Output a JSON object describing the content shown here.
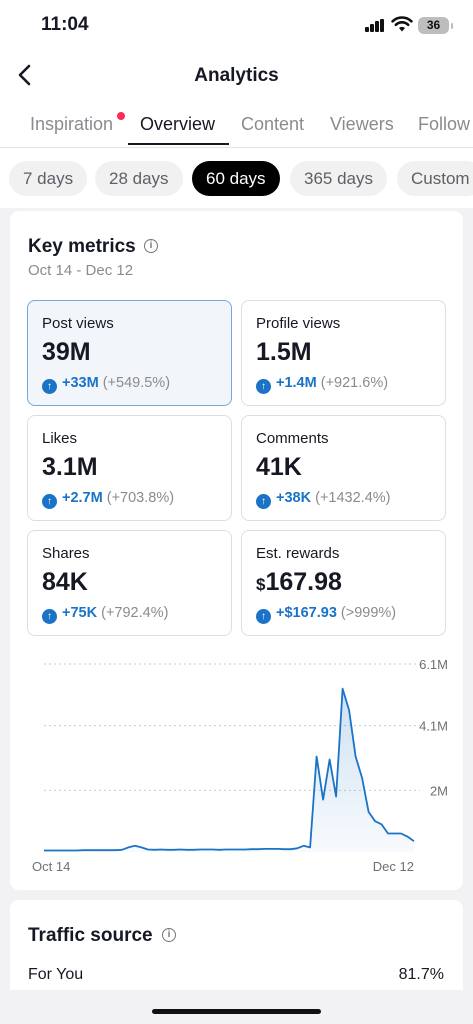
{
  "status_bar": {
    "time": "11:04",
    "battery": "36"
  },
  "nav": {
    "title": "Analytics"
  },
  "tabs": [
    {
      "label": "Inspiration",
      "has_dot": true
    },
    {
      "label": "Overview",
      "active": true
    },
    {
      "label": "Content"
    },
    {
      "label": "Viewers"
    },
    {
      "label": "Follow"
    }
  ],
  "ranges": [
    {
      "label": "7 days"
    },
    {
      "label": "28 days"
    },
    {
      "label": "60 days",
      "active": true
    },
    {
      "label": "365 days"
    },
    {
      "label": "Custom"
    }
  ],
  "key_metrics": {
    "title": "Key metrics",
    "date_range": "Oct 14 - Dec 12",
    "metrics": [
      {
        "label": "Post views",
        "value": "39M",
        "delta": "+33M",
        "pct": "(+549.5%)",
        "selected": true
      },
      {
        "label": "Profile views",
        "value": "1.5M",
        "delta": "+1.4M",
        "pct": "(+921.6%)"
      },
      {
        "label": "Likes",
        "value": "3.1M",
        "delta": "+2.7M",
        "pct": "(+703.8%)"
      },
      {
        "label": "Comments",
        "value": "41K",
        "delta": "+38K",
        "pct": "(+1432.4%)"
      },
      {
        "label": "Shares",
        "value": "84K",
        "delta": "+75K",
        "pct": "(+792.4%)"
      },
      {
        "label": "Est. rewards",
        "currency": "$",
        "value": "167.98",
        "delta": "+$167.93",
        "pct": "(>999%)"
      }
    ]
  },
  "chart_data": {
    "type": "area",
    "title": "",
    "xlabel": "",
    "ylabel": "",
    "x_tick_labels": [
      "Oct 14",
      "Dec 12"
    ],
    "y_tick_labels": [
      "6.1M",
      "4.1M",
      "2M"
    ],
    "y_ticks": [
      6.1,
      4.1,
      2.0
    ],
    "ylim": [
      0,
      6.1
    ],
    "y_unit": "M",
    "grid": true,
    "color": "#1a73c6",
    "series": [
      {
        "values": [
          0.05,
          0.05,
          0.05,
          0.05,
          0.05,
          0.05,
          0.06,
          0.06,
          0.06,
          0.06,
          0.06,
          0.06,
          0.07,
          0.15,
          0.2,
          0.15,
          0.08,
          0.07,
          0.08,
          0.07,
          0.07,
          0.08,
          0.07,
          0.07,
          0.08,
          0.08,
          0.08,
          0.07,
          0.08,
          0.08,
          0.08,
          0.08,
          0.09,
          0.09,
          0.1,
          0.1,
          0.1,
          0.09,
          0.09,
          0.12,
          0.2,
          0.15,
          3.1,
          1.7,
          3.0,
          1.8,
          5.3,
          4.6,
          3.1,
          2.4,
          1.3,
          1.0,
          0.9,
          0.6,
          0.6,
          0.6,
          0.5,
          0.35
        ]
      }
    ]
  },
  "traffic": {
    "title": "Traffic source",
    "row_label": "For You",
    "row_value": "81.7%"
  },
  "colors": {
    "accent": "#1a73c6",
    "dot": "#fe2c55",
    "selected_border": "#74a6e2"
  }
}
